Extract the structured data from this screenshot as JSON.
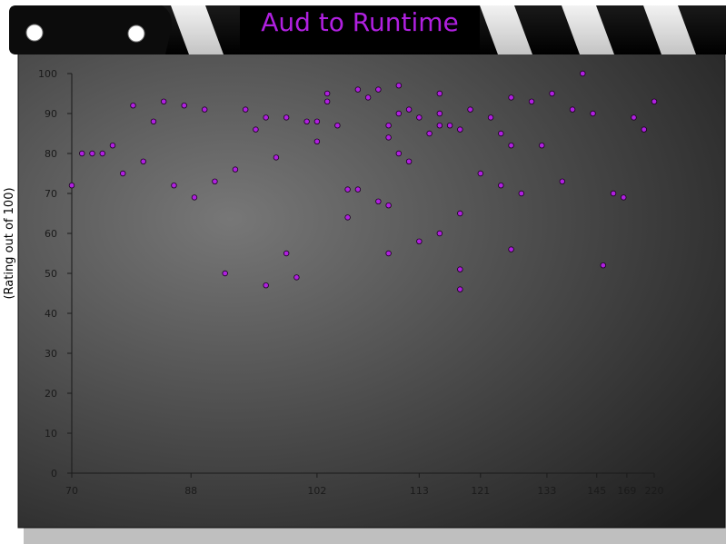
{
  "title": "Aud to Runtime",
  "colors": {
    "title_text": "#b020e0",
    "point_fill": "#b020e0",
    "point_stroke": "#1a0020",
    "board_light": "#777777",
    "board_dark": "#1e1e1e"
  },
  "chart_data": {
    "type": "scatter",
    "title": "Aud to Runtime",
    "xlabel": "",
    "ylabel": "(Rating out of 100)",
    "x_scale": "categorical-rank",
    "x_tick_labels": [
      "70",
      "88",
      "102",
      "113",
      "121",
      "133",
      "145",
      "169",
      "220"
    ],
    "y_ticks": [
      0,
      10,
      20,
      30,
      40,
      50,
      60,
      70,
      80,
      90,
      100
    ],
    "ylim": [
      0,
      100
    ],
    "grid": false,
    "legend": "none",
    "points": [
      {
        "x": 70,
        "y": 72
      },
      {
        "x": 72,
        "y": 80
      },
      {
        "x": 73,
        "y": 80
      },
      {
        "x": 74,
        "y": 80
      },
      {
        "x": 75,
        "y": 82
      },
      {
        "x": 76,
        "y": 75
      },
      {
        "x": 77,
        "y": 92
      },
      {
        "x": 80,
        "y": 78
      },
      {
        "x": 82,
        "y": 88
      },
      {
        "x": 84,
        "y": 93
      },
      {
        "x": 85,
        "y": 72
      },
      {
        "x": 86,
        "y": 92
      },
      {
        "x": 89,
        "y": 69
      },
      {
        "x": 90,
        "y": 91
      },
      {
        "x": 91,
        "y": 73
      },
      {
        "x": 93,
        "y": 50
      },
      {
        "x": 94,
        "y": 76
      },
      {
        "x": 95,
        "y": 91
      },
      {
        "x": 96,
        "y": 86
      },
      {
        "x": 97,
        "y": 89
      },
      {
        "x": 97,
        "y": 47
      },
      {
        "x": 98,
        "y": 79
      },
      {
        "x": 99,
        "y": 89
      },
      {
        "x": 99,
        "y": 55
      },
      {
        "x": 100,
        "y": 49
      },
      {
        "x": 101,
        "y": 88
      },
      {
        "x": 102,
        "y": 83
      },
      {
        "x": 102,
        "y": 88
      },
      {
        "x": 103,
        "y": 95
      },
      {
        "x": 103,
        "y": 93
      },
      {
        "x": 104,
        "y": 87
      },
      {
        "x": 105,
        "y": 71
      },
      {
        "x": 105,
        "y": 64
      },
      {
        "x": 106,
        "y": 96
      },
      {
        "x": 106,
        "y": 71
      },
      {
        "x": 107,
        "y": 94
      },
      {
        "x": 108,
        "y": 68
      },
      {
        "x": 108,
        "y": 96
      },
      {
        "x": 109,
        "y": 87
      },
      {
        "x": 109,
        "y": 84
      },
      {
        "x": 109,
        "y": 67
      },
      {
        "x": 109,
        "y": 55
      },
      {
        "x": 110,
        "y": 97
      },
      {
        "x": 110,
        "y": 90
      },
      {
        "x": 110,
        "y": 80
      },
      {
        "x": 111,
        "y": 91
      },
      {
        "x": 111,
        "y": 78
      },
      {
        "x": 113,
        "y": 89
      },
      {
        "x": 113,
        "y": 58
      },
      {
        "x": 114,
        "y": 85
      },
      {
        "x": 115,
        "y": 95
      },
      {
        "x": 115,
        "y": 90
      },
      {
        "x": 115,
        "y": 87
      },
      {
        "x": 115,
        "y": 60
      },
      {
        "x": 116,
        "y": 87
      },
      {
        "x": 118,
        "y": 46
      },
      {
        "x": 118,
        "y": 86
      },
      {
        "x": 118,
        "y": 65
      },
      {
        "x": 118,
        "y": 51
      },
      {
        "x": 120,
        "y": 91
      },
      {
        "x": 121,
        "y": 75
      },
      {
        "x": 122,
        "y": 89
      },
      {
        "x": 124,
        "y": 85
      },
      {
        "x": 124,
        "y": 72
      },
      {
        "x": 125,
        "y": 94
      },
      {
        "x": 125,
        "y": 82
      },
      {
        "x": 125,
        "y": 56
      },
      {
        "x": 128,
        "y": 70
      },
      {
        "x": 130,
        "y": 93
      },
      {
        "x": 131,
        "y": 82
      },
      {
        "x": 135,
        "y": 95
      },
      {
        "x": 137,
        "y": 73
      },
      {
        "x": 139,
        "y": 91
      },
      {
        "x": 140,
        "y": 100
      },
      {
        "x": 142,
        "y": 90
      },
      {
        "x": 150,
        "y": 52
      },
      {
        "x": 152,
        "y": 70
      },
      {
        "x": 154,
        "y": 69
      },
      {
        "x": 200,
        "y": 89
      },
      {
        "x": 210,
        "y": 86
      },
      {
        "x": 220,
        "y": 93
      }
    ]
  }
}
